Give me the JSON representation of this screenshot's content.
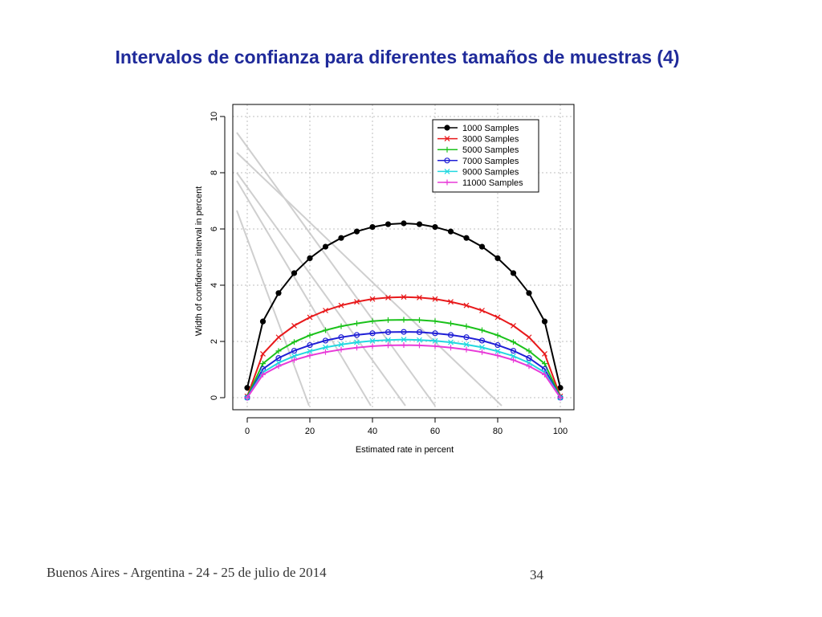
{
  "slide": {
    "title": "Intervalos de confianza para diferentes tamaños de muestras (4)",
    "footer": "Buenos Aires - Argentina - 24 - 25 de julio de 2014",
    "page_number": "34"
  },
  "chart_data": {
    "type": "line",
    "xlabel": "Estimated rate in percent",
    "ylabel": "Width of confidence interval in percent",
    "xlim": [
      0,
      100
    ],
    "ylim": [
      0,
      10
    ],
    "xticks": [
      "0",
      "20",
      "40",
      "60",
      "80",
      "100"
    ],
    "yticks": [
      "0",
      "2",
      "4",
      "6",
      "8",
      "10"
    ],
    "grid": true,
    "legend_position": "top-right",
    "x": [
      0,
      5,
      10,
      15,
      20,
      25,
      30,
      35,
      40,
      45,
      50,
      55,
      60,
      65,
      70,
      75,
      80,
      85,
      90,
      95,
      100
    ],
    "series": [
      {
        "name": "1000 Samples",
        "color": "#000000",
        "marker": "o",
        "values": [
          0.35,
          2.71,
          3.72,
          4.43,
          4.96,
          5.37,
          5.68,
          5.91,
          6.07,
          6.17,
          6.2,
          6.17,
          6.07,
          5.91,
          5.68,
          5.37,
          4.96,
          4.43,
          3.72,
          2.71,
          0.35
        ]
      },
      {
        "name": "3000 Samples",
        "color": "#e8191b",
        "marker": "x",
        "values": [
          0.05,
          1.56,
          2.15,
          2.56,
          2.86,
          3.1,
          3.28,
          3.41,
          3.51,
          3.56,
          3.58,
          3.56,
          3.51,
          3.41,
          3.28,
          3.1,
          2.86,
          2.56,
          2.15,
          1.56,
          0.05
        ]
      },
      {
        "name": "5000 Samples",
        "color": "#1bc21b",
        "marker": "+",
        "values": [
          0.03,
          1.21,
          1.66,
          1.98,
          2.22,
          2.4,
          2.54,
          2.64,
          2.72,
          2.76,
          2.77,
          2.76,
          2.72,
          2.64,
          2.54,
          2.4,
          2.22,
          1.98,
          1.66,
          1.21,
          0.03
        ]
      },
      {
        "name": "7000 Samples",
        "color": "#1f1fd6",
        "marker": "o",
        "values": [
          0.0,
          1.02,
          1.41,
          1.67,
          1.87,
          2.03,
          2.15,
          2.23,
          2.29,
          2.33,
          2.34,
          2.33,
          2.29,
          2.23,
          2.15,
          2.03,
          1.87,
          1.67,
          1.41,
          1.02,
          0.0
        ]
      },
      {
        "name": "9000 Samples",
        "color": "#22d8e0",
        "marker": "x",
        "values": [
          0.0,
          0.9,
          1.24,
          1.48,
          1.65,
          1.79,
          1.89,
          1.97,
          2.02,
          2.05,
          2.07,
          2.05,
          2.02,
          1.97,
          1.89,
          1.79,
          1.65,
          1.48,
          1.24,
          0.9,
          0.0
        ]
      },
      {
        "name": "11000 Samples",
        "color": "#e83ad8",
        "marker": "+",
        "values": [
          0.0,
          0.82,
          1.12,
          1.34,
          1.5,
          1.62,
          1.71,
          1.78,
          1.83,
          1.86,
          1.87,
          1.86,
          1.83,
          1.78,
          1.71,
          1.62,
          1.5,
          1.34,
          1.12,
          0.82,
          0.0
        ]
      }
    ]
  }
}
